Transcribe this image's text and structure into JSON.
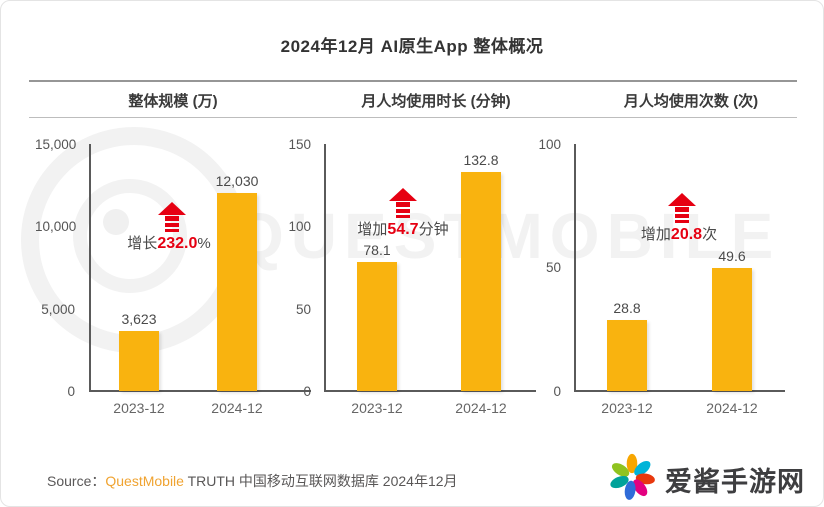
{
  "title": "2024年12月 AI原生App 整体概况",
  "watermark": {
    "text": "QUESTMOBILE"
  },
  "colors": {
    "bar": "#f9b30f",
    "accent_red": "#e60012",
    "brand_orange": "#f0a330"
  },
  "source": {
    "label": "Source：",
    "brand": "QuestMobile",
    "rest": " TRUTH 中国移动互联网数据库 2024年12月"
  },
  "logo": {
    "site_name": "爱酱手游网"
  },
  "chart_data": [
    {
      "type": "bar",
      "title": "整体规模 (万)",
      "categories": [
        "2023-12",
        "2024-12"
      ],
      "values": [
        3623,
        12030
      ],
      "value_labels": [
        "3,623",
        "12,030"
      ],
      "ylim": [
        0,
        15000
      ],
      "ytick_labels": [
        "15,000",
        "10,000",
        "5,000",
        "0"
      ],
      "bar_color": "#f9b30f",
      "annotation": {
        "prefix": "增长",
        "value": "232.0",
        "suffix": "%"
      }
    },
    {
      "type": "bar",
      "title": "月人均使用时长 (分钟)",
      "categories": [
        "2023-12",
        "2024-12"
      ],
      "values": [
        78.1,
        132.8
      ],
      "value_labels": [
        "78.1",
        "132.8"
      ],
      "ylim": [
        0,
        150
      ],
      "ytick_labels": [
        "150",
        "100",
        "50",
        "0"
      ],
      "bar_color": "#f9b30f",
      "annotation": {
        "prefix": "增加",
        "value": "54.7",
        "suffix": "分钟"
      }
    },
    {
      "type": "bar",
      "title": "月人均使用次数 (次)",
      "categories": [
        "2023-12",
        "2024-12"
      ],
      "values": [
        28.8,
        49.6
      ],
      "value_labels": [
        "28.8",
        "49.6"
      ],
      "ylim": [
        0,
        100
      ],
      "ytick_labels": [
        "100",
        "50",
        "0"
      ],
      "bar_color": "#f9b30f",
      "annotation": {
        "prefix": "增加",
        "value": "20.8",
        "suffix": "次"
      }
    }
  ]
}
